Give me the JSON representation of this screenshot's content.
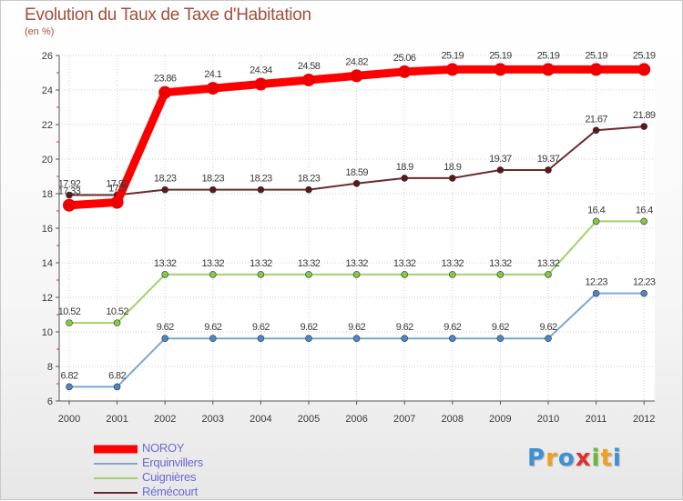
{
  "chart_data": {
    "type": "line",
    "title": "Evolution du Taux de Taxe d'Habitation",
    "ylabel": "(en %)",
    "xlabel": "",
    "ylim": [
      6,
      26
    ],
    "yticks": [
      6,
      8,
      10,
      12,
      14,
      16,
      18,
      20,
      22,
      24,
      26
    ],
    "categories": [
      "2000",
      "2001",
      "2002",
      "2003",
      "2004",
      "2005",
      "2006",
      "2007",
      "2008",
      "2009",
      "2010",
      "2011",
      "2012"
    ],
    "series": [
      {
        "name": "Rémécourt",
        "color": "#6b2a2a",
        "marker": "#5a1818",
        "values": [
          17.92,
          17.92,
          18.23,
          18.23,
          18.23,
          18.23,
          18.59,
          18.9,
          18.9,
          19.37,
          19.37,
          21.67,
          21.89
        ],
        "labels": [
          "17.92",
          "17.92",
          "18.23",
          "18.23",
          "18.23",
          "18.23",
          "18.59",
          "18.9",
          "18.9",
          "19.37",
          "19.37",
          "21.67",
          "21.89"
        ]
      },
      {
        "name": "Cuignières",
        "color": "#9ed36a",
        "marker": "#84c94a",
        "values": [
          10.52,
          10.52,
          13.32,
          13.32,
          13.32,
          13.32,
          13.32,
          13.32,
          13.32,
          13.32,
          13.32,
          16.4,
          16.4
        ],
        "labels": [
          "10.52",
          "10.52",
          "13.32",
          "13.32",
          "13.32",
          "13.32",
          "13.32",
          "13.32",
          "13.32",
          "13.32",
          "13.32",
          "16.4",
          "16.4"
        ]
      },
      {
        "name": "Erquinvillers",
        "color": "#7ba7d6",
        "marker": "#4e86c6",
        "values": [
          6.82,
          6.82,
          9.62,
          9.62,
          9.62,
          9.62,
          9.62,
          9.62,
          9.62,
          9.62,
          9.62,
          12.23,
          12.23
        ],
        "labels": [
          "6.82",
          "6.82",
          "9.62",
          "9.62",
          "9.62",
          "9.62",
          "9.62",
          "9.62",
          "9.62",
          "9.62",
          "9.62",
          "12.23",
          "12.23"
        ]
      },
      {
        "name": "NOROY",
        "color": "#ff0000",
        "marker": "#ee0000",
        "values": [
          17.33,
          17.5,
          23.86,
          24.1,
          24.34,
          24.58,
          24.82,
          25.06,
          25.19,
          25.19,
          25.19,
          25.19,
          25.19
        ],
        "labels": [
          "17.33",
          "17.5",
          "23.86",
          "24.1",
          "24.34",
          "24.58",
          "24.82",
          "25.06",
          "25.19",
          "25.19",
          "25.19",
          "25.19",
          "25.19"
        ]
      }
    ],
    "legend_order": [
      "NOROY",
      "Erquinvillers",
      "Cuignières",
      "Rémécourt"
    ],
    "legend_position": "bottom-left"
  },
  "brand": {
    "logo_text": "Proxiti",
    "letters": [
      {
        "char": "P",
        "color": "#3d8fd6"
      },
      {
        "char": "r",
        "color": "#f0a020"
      },
      {
        "char": "o",
        "color": "#3d8fd6"
      },
      {
        "char": "x",
        "color": "#e23030"
      },
      {
        "char": "i",
        "color": "#69b83c"
      },
      {
        "char": "t",
        "color": "#f0a020"
      },
      {
        "char": "i",
        "color": "#3d8fd6"
      }
    ]
  }
}
